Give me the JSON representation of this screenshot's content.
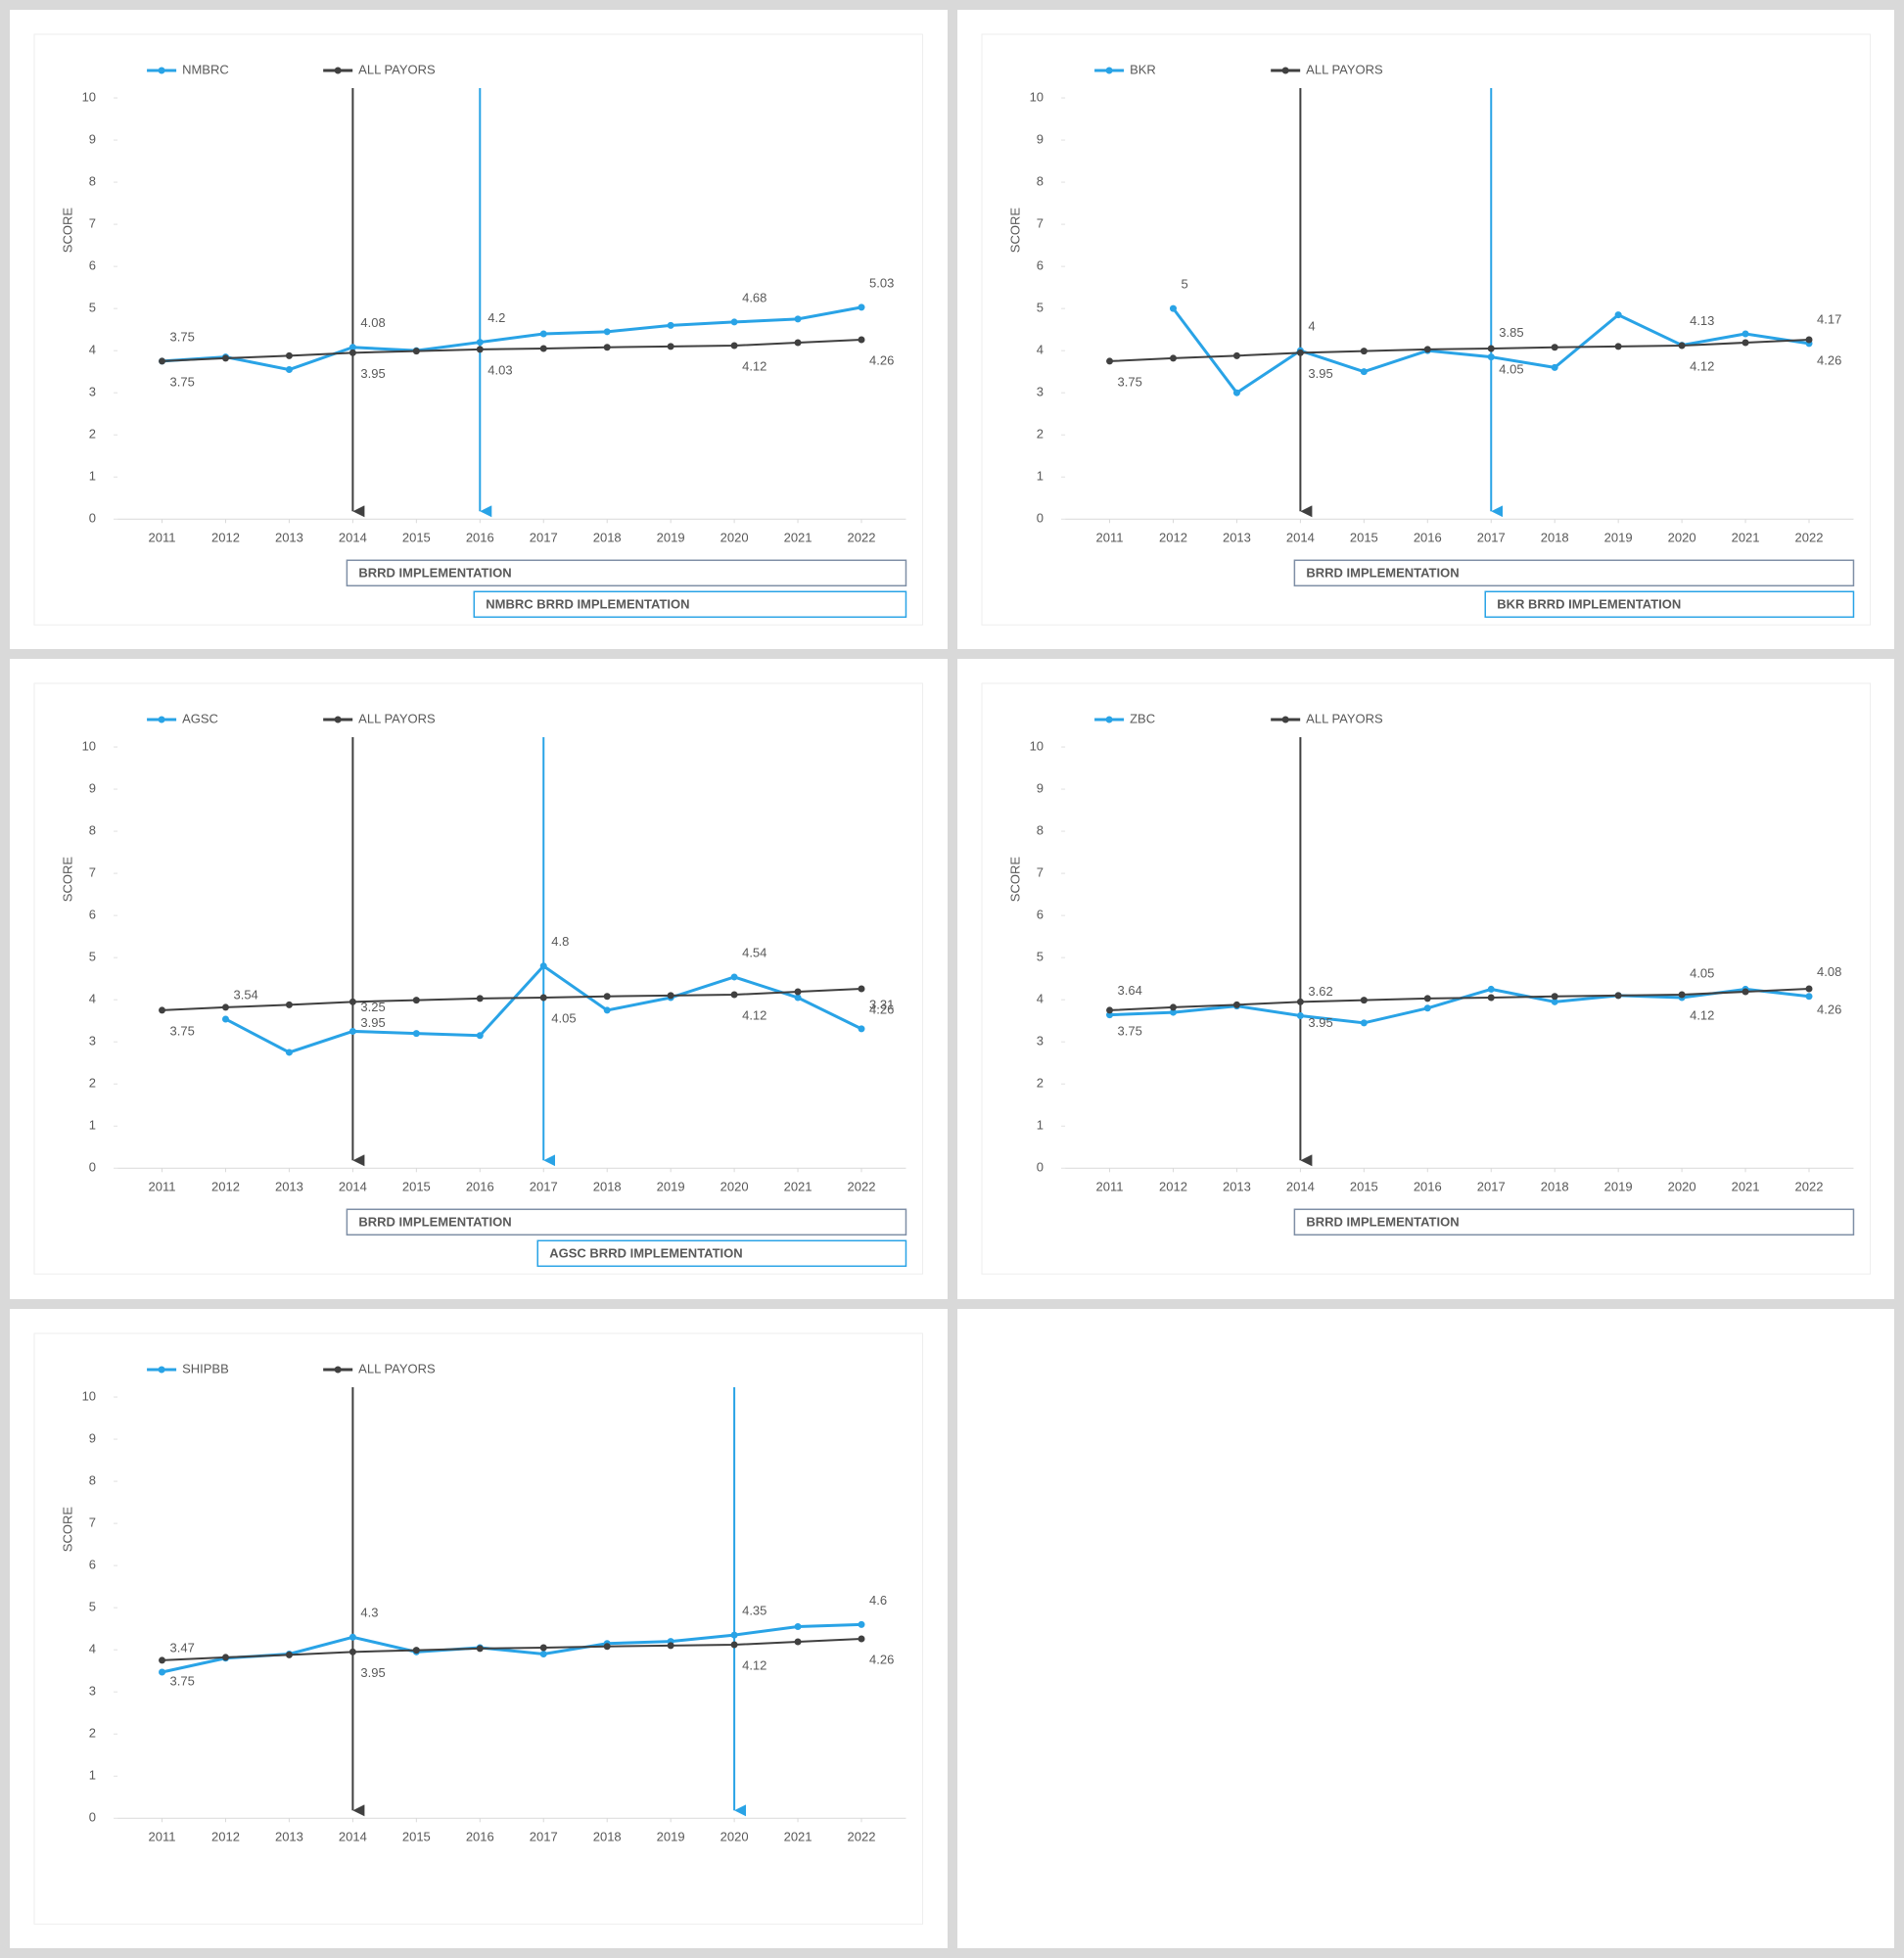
{
  "chart_data": [
    {
      "type": "line",
      "ylabel": "SCORE",
      "x": [
        2011,
        2012,
        2013,
        2014,
        2015,
        2016,
        2017,
        2018,
        2019,
        2020,
        2021,
        2022
      ],
      "xlim": [
        2010.3,
        2022.7
      ],
      "xticks": [
        2011,
        2012,
        2013,
        2014,
        2015,
        2016,
        2017,
        2018,
        2019,
        2020,
        2021,
        2022
      ],
      "ylim": [
        0,
        10
      ],
      "yticks": [
        0,
        1,
        2,
        3,
        4,
        5,
        6,
        7,
        8,
        9,
        10
      ],
      "grid": false,
      "series": [
        {
          "name": "NMBRC",
          "color": "#29a3e6",
          "values": [
            3.75,
            3.85,
            3.55,
            4.08,
            4.0,
            4.2,
            4.4,
            4.45,
            4.6,
            4.68,
            4.75,
            5.03
          ],
          "value_labels": [
            "3.75",
            null,
            null,
            "4.08",
            null,
            "4.2",
            null,
            null,
            null,
            "4.68",
            null,
            "5.03"
          ]
        },
        {
          "name": "ALL PAYORS",
          "color": "#404040",
          "values": [
            3.75,
            3.82,
            3.88,
            3.95,
            3.99,
            4.03,
            4.05,
            4.08,
            4.1,
            4.12,
            4.19,
            4.26
          ],
          "value_labels": [
            "3.75",
            null,
            null,
            "3.95",
            null,
            "4.03",
            null,
            null,
            null,
            "4.12",
            null,
            "4.26"
          ]
        }
      ],
      "vlines": [
        {
          "x": 2014,
          "color": "#404040"
        },
        {
          "x": 2016,
          "color": "#29a3e6"
        }
      ],
      "annotations": [
        {
          "text": "BRRD IMPLEMENTATION",
          "x": 2014,
          "color": "#404040"
        },
        {
          "text": "NMBRC BRRD IMPLEMENTATION",
          "x": 2016,
          "color": "#29a3e6"
        }
      ]
    },
    {
      "type": "line",
      "ylabel": "SCORE",
      "x": [
        2011,
        2012,
        2013,
        2014,
        2015,
        2016,
        2017,
        2018,
        2019,
        2020,
        2021,
        2022
      ],
      "xlim": [
        2010.3,
        2022.7
      ],
      "xticks": [
        2011,
        2012,
        2013,
        2014,
        2015,
        2016,
        2017,
        2018,
        2019,
        2020,
        2021,
        2022
      ],
      "ylim": [
        0,
        10
      ],
      "yticks": [
        0,
        1,
        2,
        3,
        4,
        5,
        6,
        7,
        8,
        9,
        10
      ],
      "grid": false,
      "series": [
        {
          "name": "BKR",
          "color": "#29a3e6",
          "values": [
            null,
            5,
            3.0,
            4,
            3.5,
            4.0,
            3.85,
            3.6,
            4.85,
            4.13,
            4.4,
            4.17
          ],
          "value_labels": [
            null,
            "5",
            null,
            "4",
            null,
            null,
            "3.85",
            null,
            null,
            "4.13",
            null,
            "4.17"
          ]
        },
        {
          "name": "ALL PAYORS",
          "color": "#404040",
          "values": [
            3.75,
            3.82,
            3.88,
            3.95,
            3.99,
            4.03,
            4.05,
            4.08,
            4.1,
            4.12,
            4.19,
            4.26
          ],
          "value_labels": [
            "3.75",
            null,
            null,
            "3.95",
            null,
            null,
            "4.05",
            null,
            null,
            "4.12",
            null,
            "4.26"
          ]
        }
      ],
      "vlines": [
        {
          "x": 2014,
          "color": "#404040"
        },
        {
          "x": 2017,
          "color": "#29a3e6"
        }
      ],
      "annotations": [
        {
          "text": "BRRD IMPLEMENTATION",
          "x": 2014,
          "color": "#404040"
        },
        {
          "text": "BKR BRRD IMPLEMENTATION",
          "x": 2017,
          "color": "#29a3e6"
        }
      ]
    },
    {
      "type": "line",
      "ylabel": "SCORE",
      "x": [
        2011,
        2012,
        2013,
        2014,
        2015,
        2016,
        2017,
        2018,
        2019,
        2020,
        2021,
        2022
      ],
      "xlim": [
        2010.3,
        2022.7
      ],
      "xticks": [
        2011,
        2012,
        2013,
        2014,
        2015,
        2016,
        2017,
        2018,
        2019,
        2020,
        2021,
        2022
      ],
      "ylim": [
        0,
        10
      ],
      "yticks": [
        0,
        1,
        2,
        3,
        4,
        5,
        6,
        7,
        8,
        9,
        10
      ],
      "grid": false,
      "series": [
        {
          "name": "AGSC",
          "color": "#29a3e6",
          "values": [
            null,
            3.54,
            2.75,
            3.25,
            3.2,
            3.15,
            4.8,
            3.75,
            4.05,
            4.54,
            4.05,
            3.31
          ],
          "value_labels": [
            null,
            "3.54",
            null,
            "3.25",
            null,
            null,
            "4.8",
            null,
            null,
            "4.54",
            null,
            "3.31"
          ]
        },
        {
          "name": "ALL PAYORS",
          "color": "#404040",
          "values": [
            3.75,
            3.82,
            3.88,
            3.95,
            3.99,
            4.03,
            4.05,
            4.08,
            4.1,
            4.12,
            4.19,
            4.26
          ],
          "value_labels": [
            "3.75",
            null,
            null,
            "3.95",
            null,
            null,
            "4.05",
            null,
            null,
            "4.12",
            null,
            "4.26"
          ]
        }
      ],
      "vlines": [
        {
          "x": 2014,
          "color": "#404040"
        },
        {
          "x": 2017,
          "color": "#29a3e6"
        }
      ],
      "annotations": [
        {
          "text": "BRRD IMPLEMENTATION",
          "x": 2014,
          "color": "#404040"
        },
        {
          "text": "AGSC BRRD IMPLEMENTATION",
          "x": 2017,
          "color": "#29a3e6"
        }
      ]
    },
    {
      "type": "line",
      "ylabel": "SCORE",
      "x": [
        2011,
        2012,
        2013,
        2014,
        2015,
        2016,
        2017,
        2018,
        2019,
        2020,
        2021,
        2022
      ],
      "xlim": [
        2010.3,
        2022.7
      ],
      "xticks": [
        2011,
        2012,
        2013,
        2014,
        2015,
        2016,
        2017,
        2018,
        2019,
        2020,
        2021,
        2022
      ],
      "ylim": [
        0,
        10
      ],
      "yticks": [
        0,
        1,
        2,
        3,
        4,
        5,
        6,
        7,
        8,
        9,
        10
      ],
      "grid": false,
      "series": [
        {
          "name": "ZBC",
          "color": "#29a3e6",
          "values": [
            3.64,
            3.7,
            3.85,
            3.62,
            3.45,
            3.8,
            4.25,
            3.95,
            4.1,
            4.05,
            4.25,
            4.08
          ],
          "value_labels": [
            "3.64",
            null,
            null,
            "3.62",
            null,
            null,
            null,
            null,
            null,
            "4.05",
            null,
            "4.08"
          ]
        },
        {
          "name": "ALL PAYORS",
          "color": "#404040",
          "values": [
            3.75,
            3.82,
            3.88,
            3.95,
            3.99,
            4.03,
            4.05,
            4.08,
            4.1,
            4.12,
            4.19,
            4.26
          ],
          "value_labels": [
            "3.75",
            null,
            null,
            "3.95",
            null,
            null,
            null,
            null,
            null,
            "4.12",
            null,
            "4.26"
          ]
        }
      ],
      "vlines": [
        {
          "x": 2014,
          "color": "#404040"
        }
      ],
      "annotations": [
        {
          "text": "BRRD IMPLEMENTATION",
          "x": 2014,
          "color": "#404040"
        }
      ]
    },
    {
      "type": "line",
      "ylabel": "SCORE",
      "x": [
        2011,
        2012,
        2013,
        2014,
        2015,
        2016,
        2017,
        2018,
        2019,
        2020,
        2021,
        2022
      ],
      "xlim": [
        2010.3,
        2022.7
      ],
      "xticks": [
        2011,
        2012,
        2013,
        2014,
        2015,
        2016,
        2017,
        2018,
        2019,
        2020,
        2021,
        2022
      ],
      "ylim": [
        0,
        10
      ],
      "yticks": [
        0,
        1,
        2,
        3,
        4,
        5,
        6,
        7,
        8,
        9,
        10
      ],
      "grid": false,
      "series": [
        {
          "name": "SHIPBB",
          "color": "#29a3e6",
          "values": [
            3.47,
            3.8,
            3.9,
            4.3,
            3.95,
            4.05,
            3.9,
            4.15,
            4.2,
            4.35,
            4.55,
            4.6
          ],
          "value_labels": [
            "3.47",
            null,
            null,
            "4.3",
            null,
            null,
            null,
            null,
            null,
            "4.35",
            null,
            "4.6"
          ]
        },
        {
          "name": "ALL PAYORS",
          "color": "#404040",
          "values": [
            3.75,
            3.82,
            3.88,
            3.95,
            3.99,
            4.03,
            4.05,
            4.08,
            4.1,
            4.12,
            4.19,
            4.26
          ],
          "value_labels": [
            "3.75",
            null,
            null,
            "3.95",
            null,
            null,
            null,
            null,
            null,
            "4.12",
            null,
            "4.26"
          ]
        }
      ],
      "vlines": [
        {
          "x": 2014,
          "color": "#404040"
        },
        {
          "x": 2020,
          "color": "#29a3e6"
        }
      ],
      "annotations": []
    }
  ]
}
